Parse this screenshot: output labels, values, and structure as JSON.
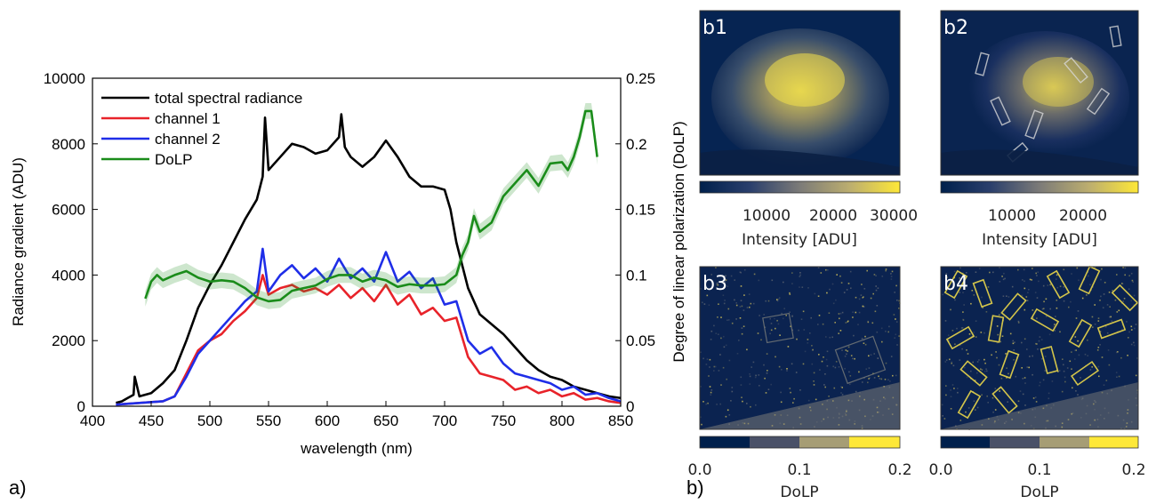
{
  "chart_data": [
    {
      "type": "line",
      "panel_label": "a)",
      "xlabel": "wavelength (nm)",
      "ylabel": "Radiance gradient (ADU)",
      "ylabel_right": "Degree of linear polarization (DoLP)",
      "xlim": [
        400,
        850
      ],
      "ylim": [
        0,
        10000
      ],
      "ylim_right": [
        0,
        0.25
      ],
      "xticks": [
        "400",
        "450",
        "500",
        "550",
        "600",
        "650",
        "700",
        "750",
        "800",
        "850"
      ],
      "yticks_left": [
        "0",
        "2000",
        "4000",
        "6000",
        "8000",
        "10000"
      ],
      "yticks_right": [
        "0",
        "0.05",
        "0.1",
        "0.15",
        "0.2",
        "0.25"
      ],
      "legend_position": "top-left",
      "series": [
        {
          "name": "total spectral radiance",
          "color": "#000000",
          "axis": "left",
          "x": [
            420,
            425,
            430,
            435,
            436,
            440,
            450,
            460,
            470,
            480,
            490,
            500,
            510,
            520,
            530,
            540,
            545,
            547,
            550,
            560,
            570,
            580,
            590,
            600,
            610,
            612,
            615,
            620,
            630,
            640,
            650,
            660,
            670,
            680,
            690,
            700,
            705,
            710,
            720,
            730,
            740,
            750,
            760,
            770,
            780,
            790,
            800,
            810,
            820,
            830,
            840,
            850
          ],
          "values": [
            100,
            150,
            250,
            350,
            900,
            300,
            400,
            700,
            1100,
            2000,
            3000,
            3700,
            4300,
            5000,
            5700,
            6300,
            7000,
            8800,
            7200,
            7600,
            8000,
            7900,
            7700,
            7800,
            8200,
            8900,
            7900,
            7600,
            7300,
            7600,
            8100,
            7600,
            7000,
            6700,
            6700,
            6600,
            6000,
            5000,
            3600,
            2800,
            2500,
            2200,
            1800,
            1400,
            1100,
            900,
            800,
            600,
            500,
            400,
            300,
            250
          ]
        },
        {
          "name": "channel 1",
          "color": "#e8232a",
          "axis": "left",
          "x": [
            420,
            440,
            460,
            470,
            480,
            490,
            500,
            510,
            520,
            530,
            540,
            545,
            550,
            560,
            570,
            580,
            590,
            600,
            610,
            620,
            630,
            640,
            650,
            660,
            670,
            680,
            690,
            700,
            710,
            720,
            730,
            740,
            750,
            760,
            770,
            780,
            790,
            800,
            810,
            820,
            830,
            840,
            850
          ],
          "values": [
            50,
            100,
            150,
            300,
            1000,
            1700,
            2000,
            2200,
            2600,
            2900,
            3300,
            4000,
            3400,
            3600,
            3700,
            3500,
            3600,
            3400,
            3700,
            3300,
            3600,
            3200,
            3700,
            3100,
            3400,
            2800,
            3000,
            2600,
            2700,
            1500,
            1000,
            900,
            800,
            500,
            600,
            400,
            500,
            300,
            400,
            200,
            250,
            150,
            100
          ]
        },
        {
          "name": "channel 2",
          "color": "#1f2ee8",
          "axis": "left",
          "x": [
            420,
            440,
            460,
            470,
            480,
            490,
            500,
            510,
            520,
            530,
            540,
            545,
            550,
            560,
            570,
            580,
            590,
            600,
            610,
            620,
            630,
            640,
            650,
            660,
            670,
            680,
            690,
            700,
            710,
            720,
            730,
            740,
            750,
            760,
            770,
            780,
            790,
            800,
            810,
            820,
            830,
            840,
            850
          ],
          "values": [
            50,
            100,
            150,
            300,
            900,
            1600,
            2000,
            2400,
            2800,
            3200,
            3500,
            4800,
            3500,
            4000,
            4300,
            3900,
            4200,
            3800,
            4500,
            3900,
            4200,
            3800,
            4700,
            3800,
            4100,
            3600,
            3900,
            3100,
            3200,
            2000,
            1600,
            1800,
            1300,
            1000,
            900,
            800,
            700,
            500,
            600,
            350,
            400,
            250,
            150
          ]
        },
        {
          "name": "DoLP",
          "color": "#1a8c1a",
          "axis": "right",
          "x": [
            445,
            450,
            455,
            460,
            470,
            480,
            490,
            500,
            510,
            520,
            530,
            540,
            550,
            560,
            570,
            580,
            590,
            600,
            610,
            620,
            630,
            640,
            650,
            660,
            670,
            680,
            690,
            700,
            710,
            715,
            720,
            725,
            730,
            740,
            750,
            760,
            770,
            780,
            790,
            800,
            805,
            810,
            815,
            820,
            825,
            830
          ],
          "values": [
            0.082,
            0.095,
            0.1,
            0.096,
            0.1,
            0.103,
            0.098,
            0.095,
            0.096,
            0.095,
            0.09,
            0.083,
            0.08,
            0.081,
            0.088,
            0.09,
            0.092,
            0.097,
            0.1,
            0.1,
            0.095,
            0.098,
            0.096,
            0.091,
            0.093,
            0.092,
            0.092,
            0.093,
            0.1,
            0.115,
            0.125,
            0.145,
            0.133,
            0.14,
            0.16,
            0.17,
            0.18,
            0.168,
            0.185,
            0.186,
            0.18,
            0.19,
            0.205,
            0.225,
            0.225,
            0.19
          ],
          "band": 0.006
        }
      ]
    },
    {
      "type": "heatmap",
      "panel_label": "b1",
      "colorbar_ticks": [
        "10000",
        "20000",
        "30000"
      ],
      "colorbar_label": "Intensity [ADU]"
    },
    {
      "type": "heatmap",
      "panel_label": "b2",
      "colorbar_ticks": [
        "10000",
        "20000"
      ],
      "colorbar_label": "Intensity [ADU]"
    },
    {
      "type": "heatmap",
      "panel_label": "b3",
      "colorbar_ticks": [
        "0.0",
        "0.1",
        "0.2"
      ],
      "colorbar_label": "DoLP"
    },
    {
      "type": "heatmap",
      "panel_label": "b4",
      "colorbar_ticks": [
        "0.0",
        "0.1",
        "0.2"
      ],
      "colorbar_label": "DoLP"
    }
  ],
  "figure_b_label": "b)",
  "colors": {
    "cividis_dark": "#00204c",
    "cividis_mid": "#7c7b78",
    "cividis_light": "#fee838"
  }
}
